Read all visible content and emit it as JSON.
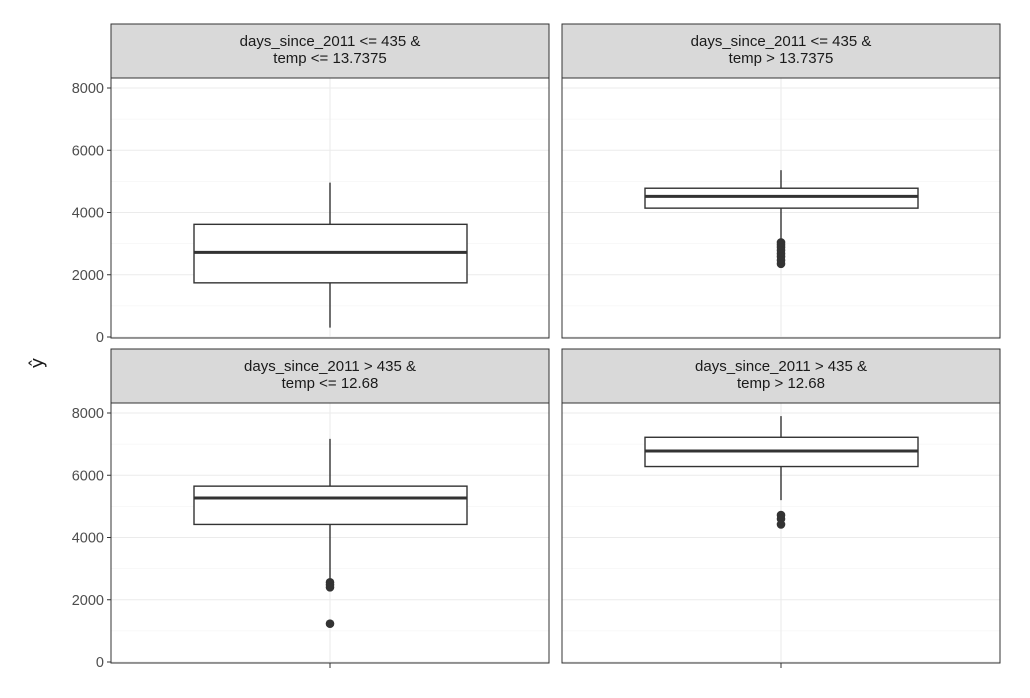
{
  "chart_data": {
    "type": "boxplot",
    "ylabel": "ŷ",
    "xlabel": "",
    "ylim": [
      0,
      8000
    ],
    "y_ticks": [
      0,
      2000,
      4000,
      6000,
      8000
    ],
    "y_tick_labels": [
      "0",
      "2000",
      "4000",
      "6000",
      "8000"
    ],
    "grid": true,
    "panels": [
      {
        "strip": [
          "days_since_2011 <= 435 &",
          "temp <= 13.7375"
        ],
        "box": {
          "whisker_low": 300,
          "q1": 1740,
          "median": 2720,
          "q3": 3620,
          "whisker_high": 4960
        },
        "outliers": []
      },
      {
        "strip": [
          "days_since_2011 <= 435 &",
          "temp > 13.7375"
        ],
        "box": {
          "whisker_low": 3100,
          "q1": 4140,
          "median": 4520,
          "q3": 4780,
          "whisker_high": 5360
        },
        "outliers": [
          3040,
          2960,
          2880,
          2780,
          2680,
          2580,
          2460,
          2350
        ]
      },
      {
        "strip": [
          "days_since_2011 > 435 &",
          "temp <= 12.68"
        ],
        "box": {
          "whisker_low": 2600,
          "q1": 4420,
          "median": 5270,
          "q3": 5650,
          "whisker_high": 7170
        },
        "outliers": [
          2560,
          2480,
          2400,
          1230
        ]
      },
      {
        "strip": [
          "days_since_2011 > 435 &",
          "temp > 12.68"
        ],
        "box": {
          "whisker_low": 5200,
          "q1": 6280,
          "median": 6780,
          "q3": 7220,
          "whisker_high": 7900
        },
        "outliers": [
          4720,
          4600,
          4420
        ]
      }
    ]
  }
}
